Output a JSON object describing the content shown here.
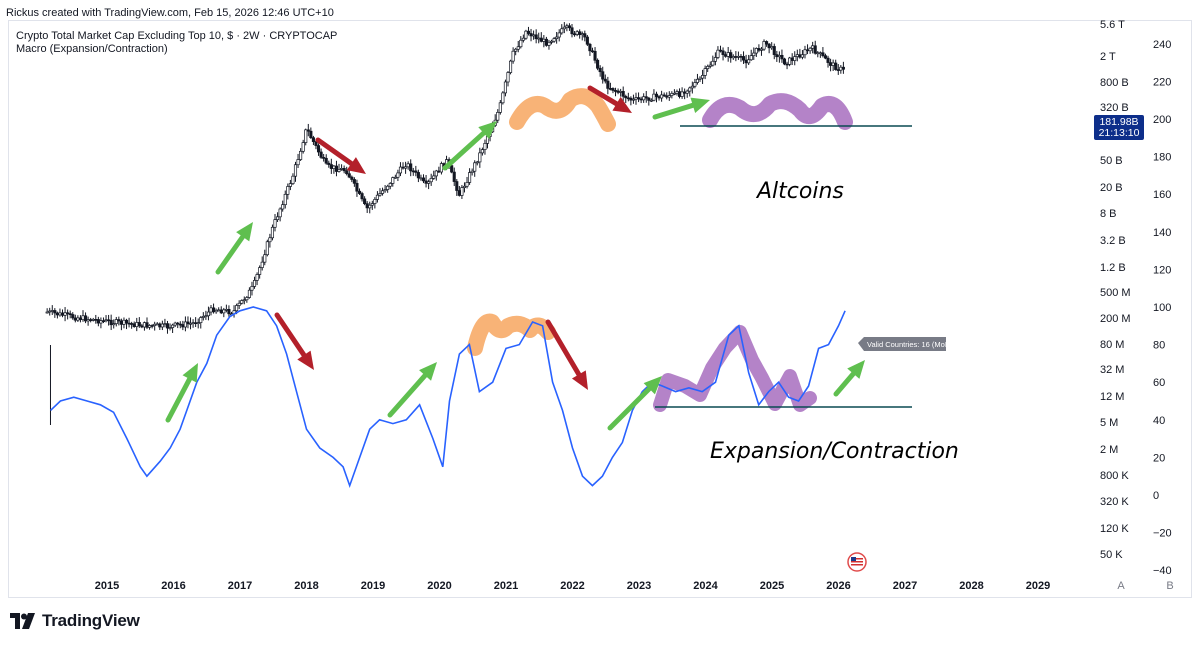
{
  "credit": "Rickus created with TradingView.com, Feb 15, 2026 12:46 UTC+10",
  "symbol_title": "Crypto Total Market Cap Excluding Top 10, $ · 2W · CRYPTOCAP",
  "indicator_title": "Macro (Expansion/Contraction)",
  "brand": "TradingView",
  "chart_data": {
    "type": "line",
    "x_axis_ticks": [
      "2015",
      "2016",
      "2017",
      "2018",
      "2019",
      "2020",
      "2021",
      "2022",
      "2023",
      "2024",
      "2025",
      "2026",
      "2027",
      "2028",
      "2029"
    ],
    "left_scale_labels": [
      "5.6 T",
      "2 T",
      "800 B",
      "320 B",
      "50 B",
      "20 B",
      "8 B",
      "3.2 B",
      "1.2 B",
      "500 M",
      "200 M",
      "80 M",
      "32 M",
      "12 M",
      "5 M",
      "2 M",
      "800 K",
      "320 K",
      "120 K",
      "50 K"
    ],
    "right_scale_labels": [
      "240",
      "220",
      "200",
      "180",
      "160",
      "140",
      "120",
      "100",
      "80",
      "60",
      "40",
      "20",
      "0",
      "−20",
      "−40"
    ],
    "price_badge": {
      "value": "181.98B",
      "countdown": "21:13:10",
      "color": "#0d2e8a"
    },
    "indicator_badge": "Valid Countries: 16 (MoM)",
    "scale_buttons": [
      "A",
      "B"
    ],
    "annotations": [
      "Altcoins",
      "Expansion/Contraction"
    ],
    "series": [
      {
        "name": "Altcoins",
        "style": "candles",
        "x": [
          2014.1,
          2014.5,
          2015.0,
          2015.5,
          2015.9,
          2016.3,
          2016.6,
          2016.9,
          2017.2,
          2017.5,
          2017.8,
          2018.0,
          2018.3,
          2018.6,
          2018.9,
          2019.2,
          2019.5,
          2019.8,
          2020.1,
          2020.3,
          2020.6,
          2020.9,
          2021.1,
          2021.3,
          2021.6,
          2021.9,
          2022.2,
          2022.5,
          2022.9,
          2023.2,
          2023.6,
          2023.9,
          2024.2,
          2024.6,
          2024.9,
          2025.2,
          2025.6,
          2025.9,
          2026.1
        ],
        "y": [
          250,
          210,
          180,
          160,
          150,
          170,
          280,
          250,
          600,
          5000,
          30000,
          150000,
          40000,
          35000,
          9000,
          20000,
          45000,
          20000,
          50000,
          15000,
          60000,
          300000,
          2000000,
          4500000,
          3000000,
          5000000,
          3500000,
          700000,
          400000,
          450000,
          500000,
          800000,
          2200000,
          1600000,
          3000000,
          1500000,
          2500000,
          1400000,
          1100000
        ]
      },
      {
        "name": "Expansion/Contraction",
        "style": "line",
        "color": "#2962ff",
        "x": [
          2014.15,
          2014.3,
          2014.5,
          2014.7,
          2014.9,
          2015.1,
          2015.3,
          2015.5,
          2015.6,
          2015.8,
          2015.95,
          2016.1,
          2016.2,
          2016.35,
          2016.5,
          2016.65,
          2016.85,
          2017.0,
          2017.2,
          2017.4,
          2017.55,
          2017.7,
          2017.85,
          2018.0,
          2018.2,
          2018.4,
          2018.55,
          2018.65,
          2018.8,
          2018.95,
          2019.1,
          2019.3,
          2019.5,
          2019.7,
          2019.9,
          2020.05,
          2020.15,
          2020.3,
          2020.45,
          2020.6,
          2020.8,
          2021.0,
          2021.2,
          2021.4,
          2021.55,
          2021.7,
          2021.85,
          2022.0,
          2022.15,
          2022.3,
          2022.45,
          2022.6,
          2022.75,
          2022.9,
          2023.05,
          2023.2,
          2023.35,
          2023.55,
          2023.75,
          2023.95,
          2024.15,
          2024.35,
          2024.5,
          2024.65,
          2024.8,
          2024.95,
          2025.1,
          2025.25,
          2025.4,
          2025.55,
          2025.7,
          2025.85,
          2026.0,
          2026.1
        ],
        "y": [
          45,
          50,
          52,
          50,
          48,
          44,
          30,
          15,
          10,
          18,
          25,
          35,
          45,
          60,
          70,
          85,
          95,
          98,
          100,
          98,
          90,
          75,
          55,
          35,
          25,
          20,
          15,
          5,
          20,
          35,
          40,
          38,
          40,
          48,
          30,
          15,
          50,
          75,
          80,
          55,
          60,
          78,
          80,
          92,
          90,
          60,
          45,
          25,
          10,
          5,
          10,
          20,
          28,
          45,
          55,
          60,
          58,
          55,
          57,
          55,
          60,
          85,
          90,
          65,
          48,
          55,
          60,
          52,
          50,
          58,
          78,
          80,
          90,
          98
        ]
      }
    ]
  }
}
